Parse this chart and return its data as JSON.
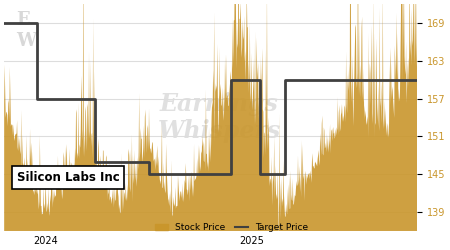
{
  "title": "",
  "company_label": "Silicon Labs Inc",
  "ylabel_right_values": [
    139.0,
    145.0,
    151.0,
    157.0,
    163.0,
    169.0
  ],
  "ylim": [
    136,
    172
  ],
  "xlim": [
    0,
    100
  ],
  "background_color": "#ffffff",
  "grid_color": "#dddddd",
  "target_price_color": "#404040",
  "stock_price_color": "#C9962C",
  "legend_stock": "Stock Price",
  "legend_target": "Target Price",
  "target_price_steps": [
    [
      0,
      169.0
    ],
    [
      8,
      169.0
    ],
    [
      8,
      157.0
    ],
    [
      22,
      157.0
    ],
    [
      22,
      147.0
    ],
    [
      35,
      147.0
    ],
    [
      35,
      145.0
    ],
    [
      55,
      145.0
    ],
    [
      55,
      160.0
    ],
    [
      62,
      160.0
    ],
    [
      62,
      145.0
    ],
    [
      68,
      145.0
    ],
    [
      68,
      160.0
    ],
    [
      100,
      160.0
    ]
  ],
  "stock_price_x": [
    0,
    1,
    2,
    3,
    4,
    5,
    6,
    7,
    8,
    9,
    10,
    11,
    12,
    13,
    14,
    15,
    16,
    17,
    18,
    19,
    20,
    21,
    22,
    23,
    24,
    25,
    26,
    27,
    28,
    29,
    30,
    31,
    32,
    33,
    34,
    35,
    36,
    37,
    38,
    39,
    40,
    41,
    42,
    43,
    44,
    45,
    46,
    47,
    48,
    49,
    50,
    51,
    52,
    53,
    54,
    55,
    56,
    57,
    58,
    59,
    60,
    61,
    62,
    63,
    64,
    65,
    66,
    67,
    68,
    69,
    70,
    71,
    72,
    73,
    74,
    75,
    76,
    77,
    78,
    79,
    80,
    81,
    82,
    83,
    84,
    85,
    86,
    87,
    88,
    89,
    90,
    91,
    92,
    93,
    94,
    95,
    96,
    97,
    98,
    99,
    100
  ],
  "stock_price_y": [
    155,
    154,
    152,
    150,
    148,
    146,
    144,
    142,
    141,
    140,
    139,
    140,
    141,
    142,
    143,
    144,
    145,
    146,
    147,
    148,
    147,
    146,
    145,
    144,
    143,
    142,
    141,
    140,
    139,
    140,
    141,
    143,
    145,
    147,
    149,
    150,
    148,
    146,
    144,
    142,
    140,
    139,
    140,
    141,
    142,
    143,
    144,
    145,
    146,
    147,
    148,
    149,
    150,
    152,
    155,
    158,
    161,
    164,
    162,
    158,
    155,
    152,
    149,
    147,
    145,
    143,
    141,
    140,
    139,
    140,
    141,
    142,
    143,
    144,
    145,
    146,
    147,
    148,
    149,
    150,
    151,
    152,
    153,
    154,
    155,
    156,
    155,
    154,
    153,
    152,
    151,
    150,
    151,
    152,
    153,
    154,
    155,
    156,
    157,
    158,
    159
  ],
  "xtick_positions": [
    10,
    60
  ],
  "xtick_labels": [
    "2024",
    "2025"
  ]
}
